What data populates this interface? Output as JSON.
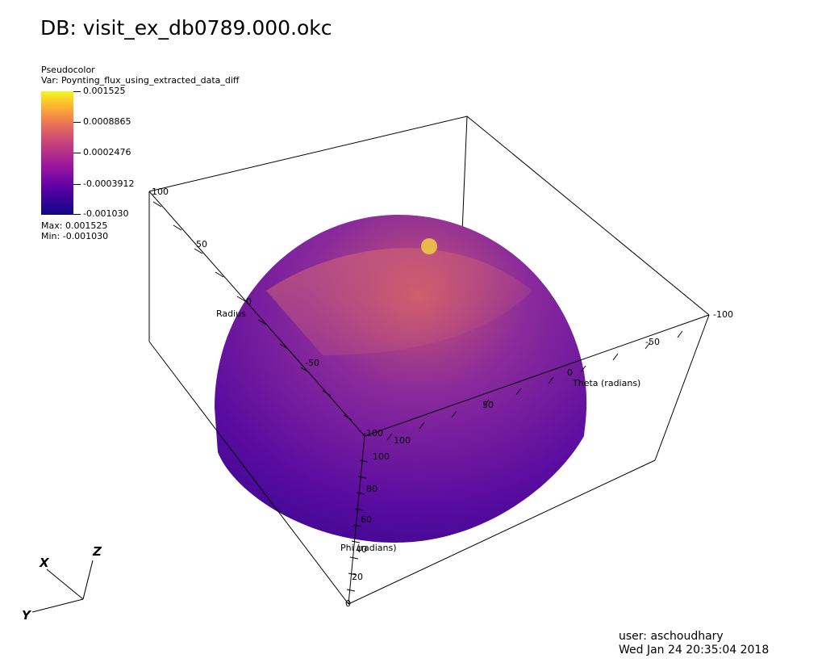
{
  "title": "DB: visit_ex_db0789.000.okc",
  "legend": {
    "plot_type": "Pseudocolor",
    "variable": "Var: Poynting_flux_using_extracted_data_diff",
    "ticks": [
      "0.001525",
      "0.0008865",
      "0.0002476",
      "-0.0003912",
      "-0.001030"
    ],
    "max": "Max:  0.001525",
    "min": "Min: -0.001030",
    "colormap": [
      "#0d0887",
      "#5c01a6",
      "#9c179e",
      "#cc4778",
      "#ed7953",
      "#fdb42f",
      "#f0f921"
    ]
  },
  "axes": {
    "radius": {
      "title": "Radius",
      "ticks": [
        "100",
        "50",
        "0",
        "-50",
        "-100"
      ]
    },
    "theta": {
      "title": "Theta (radians)",
      "ticks": [
        "100",
        "50",
        "0",
        "-50",
        "-100"
      ]
    },
    "phi": {
      "title": "Phi (radians)",
      "ticks": [
        "100",
        "80",
        "60",
        "40",
        "20",
        "0"
      ]
    }
  },
  "triad": {
    "x": "X",
    "y": "Y",
    "z": "Z"
  },
  "user": "user: aschoudhary",
  "timestamp": "Wed Jan 24 20:35:04 2018"
}
